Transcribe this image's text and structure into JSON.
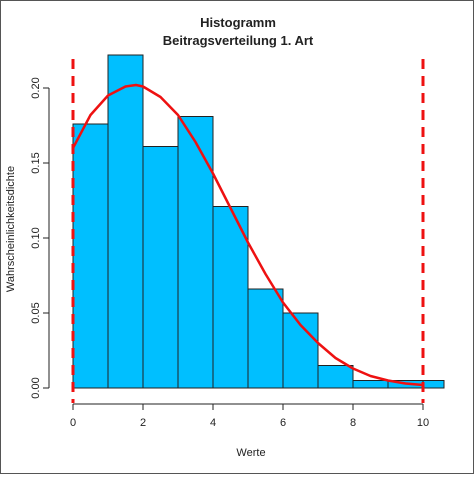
{
  "chart_data": {
    "type": "bar",
    "title": "Histogramm",
    "subtitle": "Beitragsverteilung 1. Art",
    "xlabel": "Werte",
    "ylabel": "Wahrscheinlichkeitsdichte",
    "xlim": [
      0,
      10.6
    ],
    "ylim": [
      0,
      0.22
    ],
    "x_ticks": [
      0,
      2,
      4,
      6,
      8,
      10
    ],
    "x_tick_labels": [
      "0",
      "2",
      "4",
      "6",
      "8",
      "10"
    ],
    "y_ticks": [
      0,
      0.05,
      0.1,
      0.15,
      0.2
    ],
    "y_tick_labels": [
      "0.00",
      "0.05",
      "0.10",
      "0.15",
      "0.20"
    ],
    "bins": [
      {
        "x0": 0,
        "x1": 1,
        "value": 0.176
      },
      {
        "x0": 1,
        "x1": 2,
        "value": 0.222
      },
      {
        "x0": 2,
        "x1": 3,
        "value": 0.161
      },
      {
        "x0": 3,
        "x1": 4,
        "value": 0.181
      },
      {
        "x0": 4,
        "x1": 5,
        "value": 0.121
      },
      {
        "x0": 5,
        "x1": 6,
        "value": 0.066
      },
      {
        "x0": 6,
        "x1": 7,
        "value": 0.05
      },
      {
        "x0": 7,
        "x1": 8,
        "value": 0.015
      },
      {
        "x0": 8,
        "x1": 9,
        "value": 0.005
      },
      {
        "x0": 9,
        "x1": 10,
        "value": 0.005
      },
      {
        "x0": 10,
        "x1": 10.6,
        "value": 0.005
      }
    ],
    "density_curve": {
      "x": [
        0,
        0.5,
        1,
        1.5,
        1.8,
        2,
        2.5,
        3,
        3.5,
        4,
        4.5,
        5,
        5.5,
        6,
        6.5,
        7,
        7.5,
        8,
        8.5,
        9,
        9.5,
        10
      ],
      "y": [
        0.16,
        0.182,
        0.195,
        0.201,
        0.202,
        0.201,
        0.194,
        0.182,
        0.164,
        0.143,
        0.12,
        0.097,
        0.076,
        0.057,
        0.042,
        0.03,
        0.02,
        0.013,
        0.008,
        0.005,
        0.003,
        0.002
      ]
    },
    "vertical_lines": [
      0,
      10
    ],
    "colors": {
      "bar_fill": "#00BFFF",
      "bar_edge": "#222222",
      "curve": "#EE1111",
      "vline": "#EE1111",
      "axis": "#222222"
    }
  }
}
